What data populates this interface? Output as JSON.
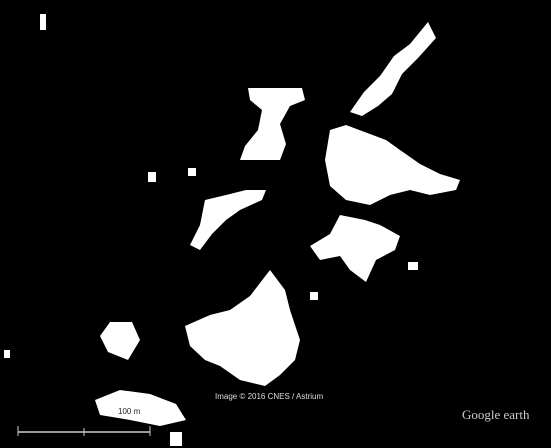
{
  "map": {
    "attribution": "Image © 2016 CNES / Astrium",
    "scale_label": "100 m",
    "logo": "Google earth"
  }
}
